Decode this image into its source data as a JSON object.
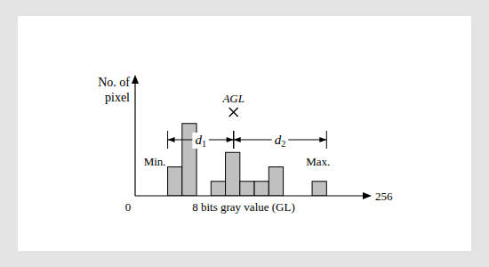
{
  "chart_data": {
    "type": "histogram",
    "bins": [
      36,
      52,
      68,
      84,
      100,
      116,
      132,
      148,
      164,
      180,
      196,
      212
    ],
    "values": [
      2,
      5,
      0,
      1,
      3,
      1,
      1,
      2,
      0,
      0,
      1
    ],
    "color": "#c0c0c0",
    "xlabel": "8 bits gray value (GL)",
    "ylabel": "No. of pixel",
    "xlim": [
      0,
      256
    ],
    "ylim": [
      0,
      8
    ],
    "xticks": [
      0,
      256
    ],
    "yticks": [],
    "tick_labels": "x",
    "annotations": [
      {
        "text": "AGL",
        "x": 109
      },
      {
        "text": "Min.",
        "x": 36
      },
      {
        "text": "Max.",
        "x": 212
      },
      {
        "text": "d1",
        "from": 36,
        "to": 109
      },
      {
        "text": "d2",
        "from": 109,
        "to": 212
      }
    ]
  }
}
